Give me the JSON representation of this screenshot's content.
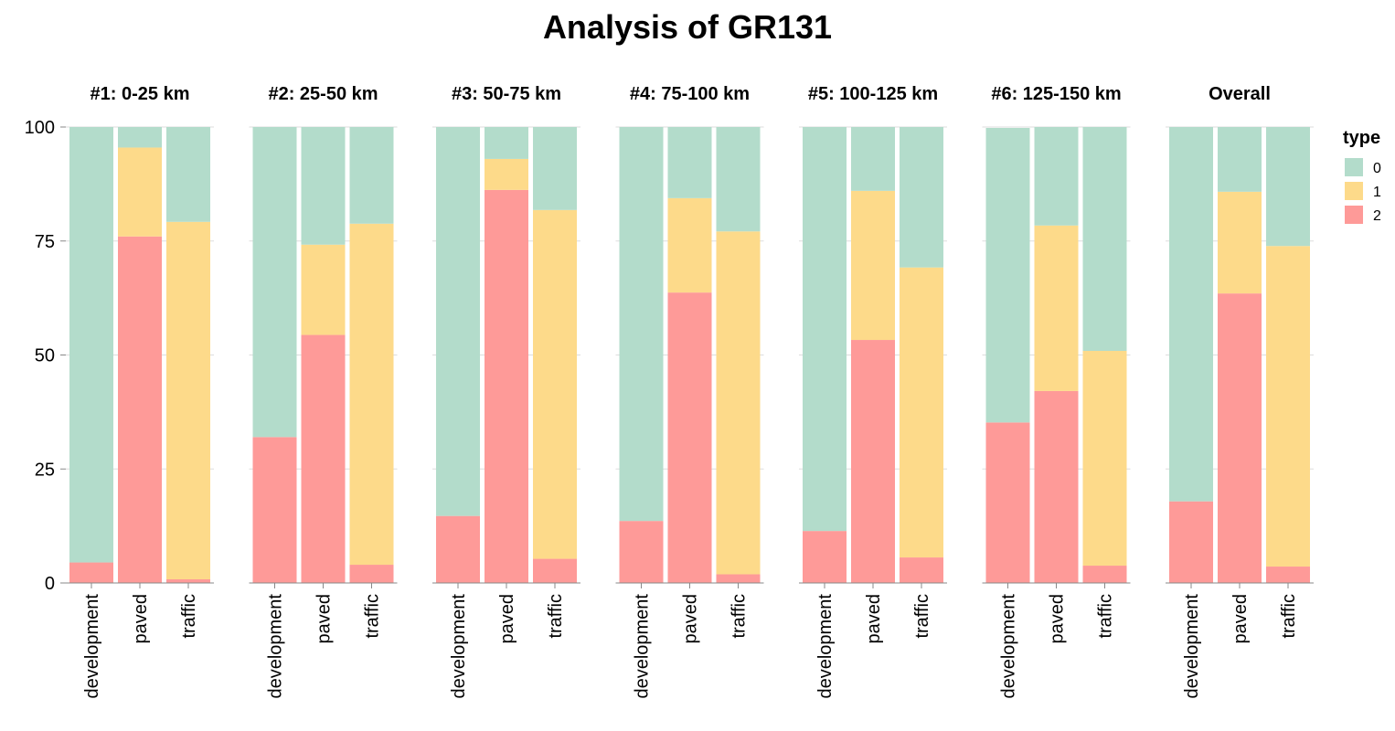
{
  "chart_data": {
    "type": "bar",
    "stacked": true,
    "title": "Analysis of GR131",
    "xlabel": "",
    "ylabel": "",
    "ylim": [
      0,
      100
    ],
    "yticks": [
      0,
      25,
      50,
      75,
      100
    ],
    "grid": true,
    "legend": {
      "title": "type",
      "placement": "right",
      "entries": [
        {
          "label": "0",
          "color": "#b3dccb"
        },
        {
          "label": "1",
          "color": "#fdda8a"
        },
        {
          "label": "2",
          "color": "#fe9a98"
        }
      ]
    },
    "categories": [
      "development",
      "paved",
      "traffic"
    ],
    "stack_order_bottom_to_top": [
      "2",
      "1",
      "0"
    ],
    "facets": [
      {
        "title": "#1: 0-25 km",
        "values": {
          "development": {
            "2": 4.5,
            "1": 0,
            "0": 95.5
          },
          "paved": {
            "2": 76,
            "1": 19.5,
            "0": 4.5
          },
          "traffic": {
            "2": 0.8,
            "1": 78.4,
            "0": 20.8
          }
        }
      },
      {
        "title": "#2: 25-50 km",
        "values": {
          "development": {
            "2": 32,
            "1": 0,
            "0": 68
          },
          "paved": {
            "2": 54.4,
            "1": 19.8,
            "0": 25.8
          },
          "traffic": {
            "2": 4,
            "1": 74.8,
            "0": 21.2
          }
        }
      },
      {
        "title": "#3: 50-75 km",
        "values": {
          "development": {
            "2": 14.7,
            "1": 0,
            "0": 85.3
          },
          "paved": {
            "2": 86.2,
            "1": 6.8,
            "0": 7
          },
          "traffic": {
            "2": 5.3,
            "1": 76.5,
            "0": 18.2
          }
        }
      },
      {
        "title": "#4: 75-100 km",
        "values": {
          "development": {
            "2": 13.6,
            "1": 0,
            "0": 86.4
          },
          "paved": {
            "2": 63.7,
            "1": 20.7,
            "0": 15.6
          },
          "traffic": {
            "2": 1.9,
            "1": 75.2,
            "0": 22.9
          }
        }
      },
      {
        "title": "#5: 100-125 km",
        "values": {
          "development": {
            "2": 11.4,
            "1": 0,
            "0": 88.6
          },
          "paved": {
            "2": 53.3,
            "1": 32.7,
            "0": 14
          },
          "traffic": {
            "2": 5.6,
            "1": 63.6,
            "0": 30.8
          }
        }
      },
      {
        "title": "#6: 125-150 km",
        "values": {
          "development": {
            "2": 35.2,
            "1": 0,
            "0": 64.6
          },
          "paved": {
            "2": 42.1,
            "1": 36.3,
            "0": 21.6
          },
          "traffic": {
            "2": 3.8,
            "1": 47.1,
            "0": 49.1
          }
        }
      },
      {
        "title": "Overall",
        "values": {
          "development": {
            "2": 17.9,
            "1": 0,
            "0": 82.1
          },
          "paved": {
            "2": 63.5,
            "1": 22.3,
            "0": 14.2
          },
          "traffic": {
            "2": 3.6,
            "1": 70.3,
            "0": 26.1
          }
        }
      }
    ]
  }
}
